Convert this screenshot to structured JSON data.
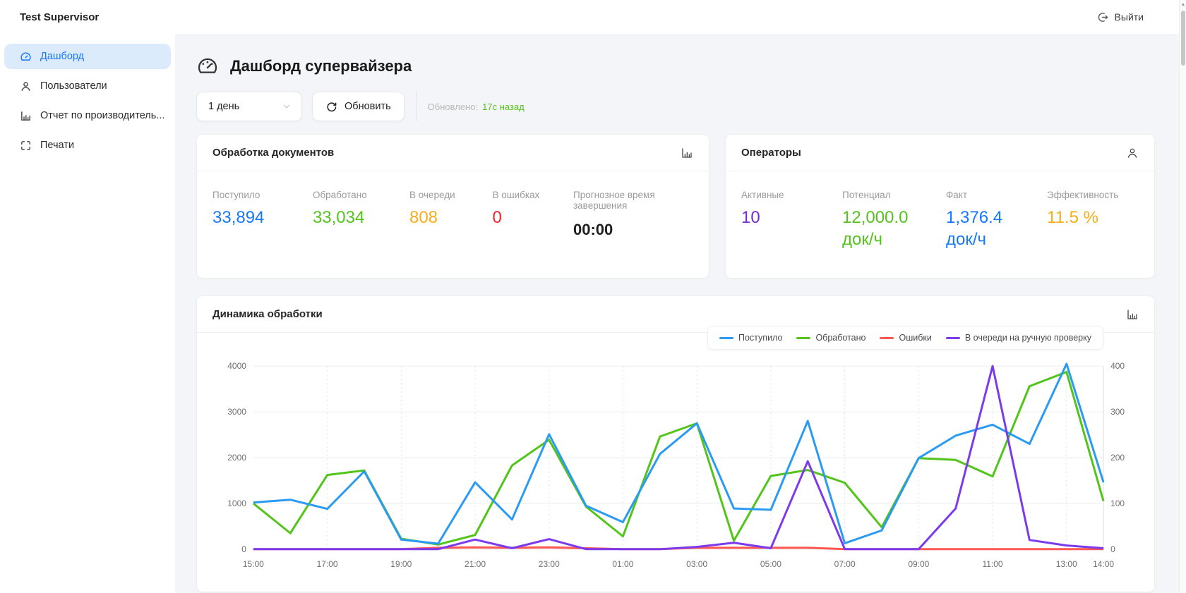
{
  "topbar": {
    "title": "Test Supervisor",
    "logout": "Выйти"
  },
  "sidebar": {
    "items": [
      {
        "label": "Дашборд",
        "icon": "gauge-icon",
        "active": true
      },
      {
        "label": "Пользователи",
        "icon": "user-icon",
        "active": false
      },
      {
        "label": "Отчет по производитель...",
        "icon": "bar-chart-icon",
        "active": false
      },
      {
        "label": "Печати",
        "icon": "stamp-frame-icon",
        "active": false
      }
    ]
  },
  "header": {
    "title": "Дашборд супервайзера"
  },
  "controls": {
    "period_value": "1 день",
    "refresh_label": "Обновить",
    "updated_label": "Обновлено:",
    "updated_value": "17с назад"
  },
  "cards": {
    "documents": {
      "title": "Обработка документов",
      "stats": [
        {
          "label": "Поступило",
          "value": "33,894",
          "color": "#1677ff"
        },
        {
          "label": "Обработано",
          "value": "33,034",
          "color": "#52c41a"
        },
        {
          "label": "В очереди",
          "value": "808",
          "color": "#faad14"
        },
        {
          "label": "В ошибках",
          "value": "0",
          "color": "#f5222d"
        },
        {
          "label": "Прогнозное время завершения",
          "value": "00:00",
          "color": "#1f1f1f"
        }
      ]
    },
    "operators": {
      "title": "Операторы",
      "stats": [
        {
          "label": "Активные",
          "value": "10",
          "unit": "",
          "color": "#722ed1"
        },
        {
          "label": "Потенциал",
          "value": "12,000.0",
          "unit": "док/ч",
          "color": "#52c41a"
        },
        {
          "label": "Факт",
          "value": "1,376.4",
          "unit": "док/ч",
          "color": "#1677ff"
        },
        {
          "label": "Эффективность",
          "value": "11.5 %",
          "unit": "",
          "color": "#faad14"
        }
      ]
    }
  },
  "chart_card": {
    "title": "Динамика обработки"
  },
  "chart_data": {
    "type": "line",
    "title": "Динамика обработки",
    "x": [
      "15:00",
      "16:00",
      "17:00",
      "18:00",
      "19:00",
      "20:00",
      "21:00",
      "22:00",
      "23:00",
      "00:00",
      "01:00",
      "02:00",
      "03:00",
      "04:00",
      "05:00",
      "06:00",
      "07:00",
      "08:00",
      "09:00",
      "10:00",
      "11:00",
      "12:00",
      "13:00",
      "14:00"
    ],
    "x_ticks": [
      {
        "i": 0,
        "label": "15:00"
      },
      {
        "i": 2,
        "label": "17:00"
      },
      {
        "i": 4,
        "label": "19:00"
      },
      {
        "i": 6,
        "label": "21:00"
      },
      {
        "i": 8,
        "label": "23:00"
      },
      {
        "i": 10,
        "label": "01:00"
      },
      {
        "i": 12,
        "label": "03:00"
      },
      {
        "i": 14,
        "label": "05:00"
      },
      {
        "i": 16,
        "label": "07:00"
      },
      {
        "i": 18,
        "label": "09:00"
      },
      {
        "i": 20,
        "label": "11:00"
      },
      {
        "i": 22,
        "label": "13:00"
      },
      {
        "i": 23,
        "label": "14:00"
      }
    ],
    "left_axis": {
      "min": 0,
      "max": 4000,
      "ticks": [
        0,
        1000,
        2000,
        3000,
        4000
      ]
    },
    "right_axis": {
      "min": 0,
      "max": 400,
      "ticks": [
        0,
        100,
        200,
        300,
        400
      ]
    },
    "grid": true,
    "legend_position": "top-right",
    "series": [
      {
        "name": "Поступило",
        "axis": "left",
        "color": "#2b9af3",
        "values": [
          1020,
          1080,
          880,
          1700,
          210,
          120,
          1460,
          650,
          2510,
          950,
          590,
          2080,
          2750,
          890,
          860,
          2800,
          130,
          410,
          1990,
          2480,
          2720,
          2300,
          4050,
          1460
        ]
      },
      {
        "name": "Обработано",
        "axis": "left",
        "color": "#52c41a",
        "values": [
          1000,
          350,
          1620,
          1720,
          230,
          100,
          310,
          1830,
          2390,
          930,
          280,
          2460,
          2750,
          185,
          1600,
          1730,
          1450,
          480,
          1990,
          1950,
          1590,
          3560,
          3870,
          1050
        ]
      },
      {
        "name": "Ошибки",
        "axis": "right",
        "color": "#ff5752",
        "values": [
          0,
          0,
          0,
          0,
          0,
          3,
          4,
          3,
          4,
          2,
          0,
          0,
          3,
          3,
          3,
          3,
          0,
          0,
          0,
          0,
          0,
          0,
          0,
          0
        ]
      },
      {
        "name": "В очереди на ручную проверку",
        "axis": "right",
        "color": "#7c3aed",
        "values": [
          0,
          0,
          0,
          0,
          0,
          0,
          21,
          2,
          22,
          0,
          0,
          0,
          5,
          14,
          2,
          192,
          0,
          0,
          0,
          89,
          400,
          20,
          8,
          2
        ]
      }
    ],
    "draw_order": [
      2,
      1,
      0,
      3
    ]
  }
}
